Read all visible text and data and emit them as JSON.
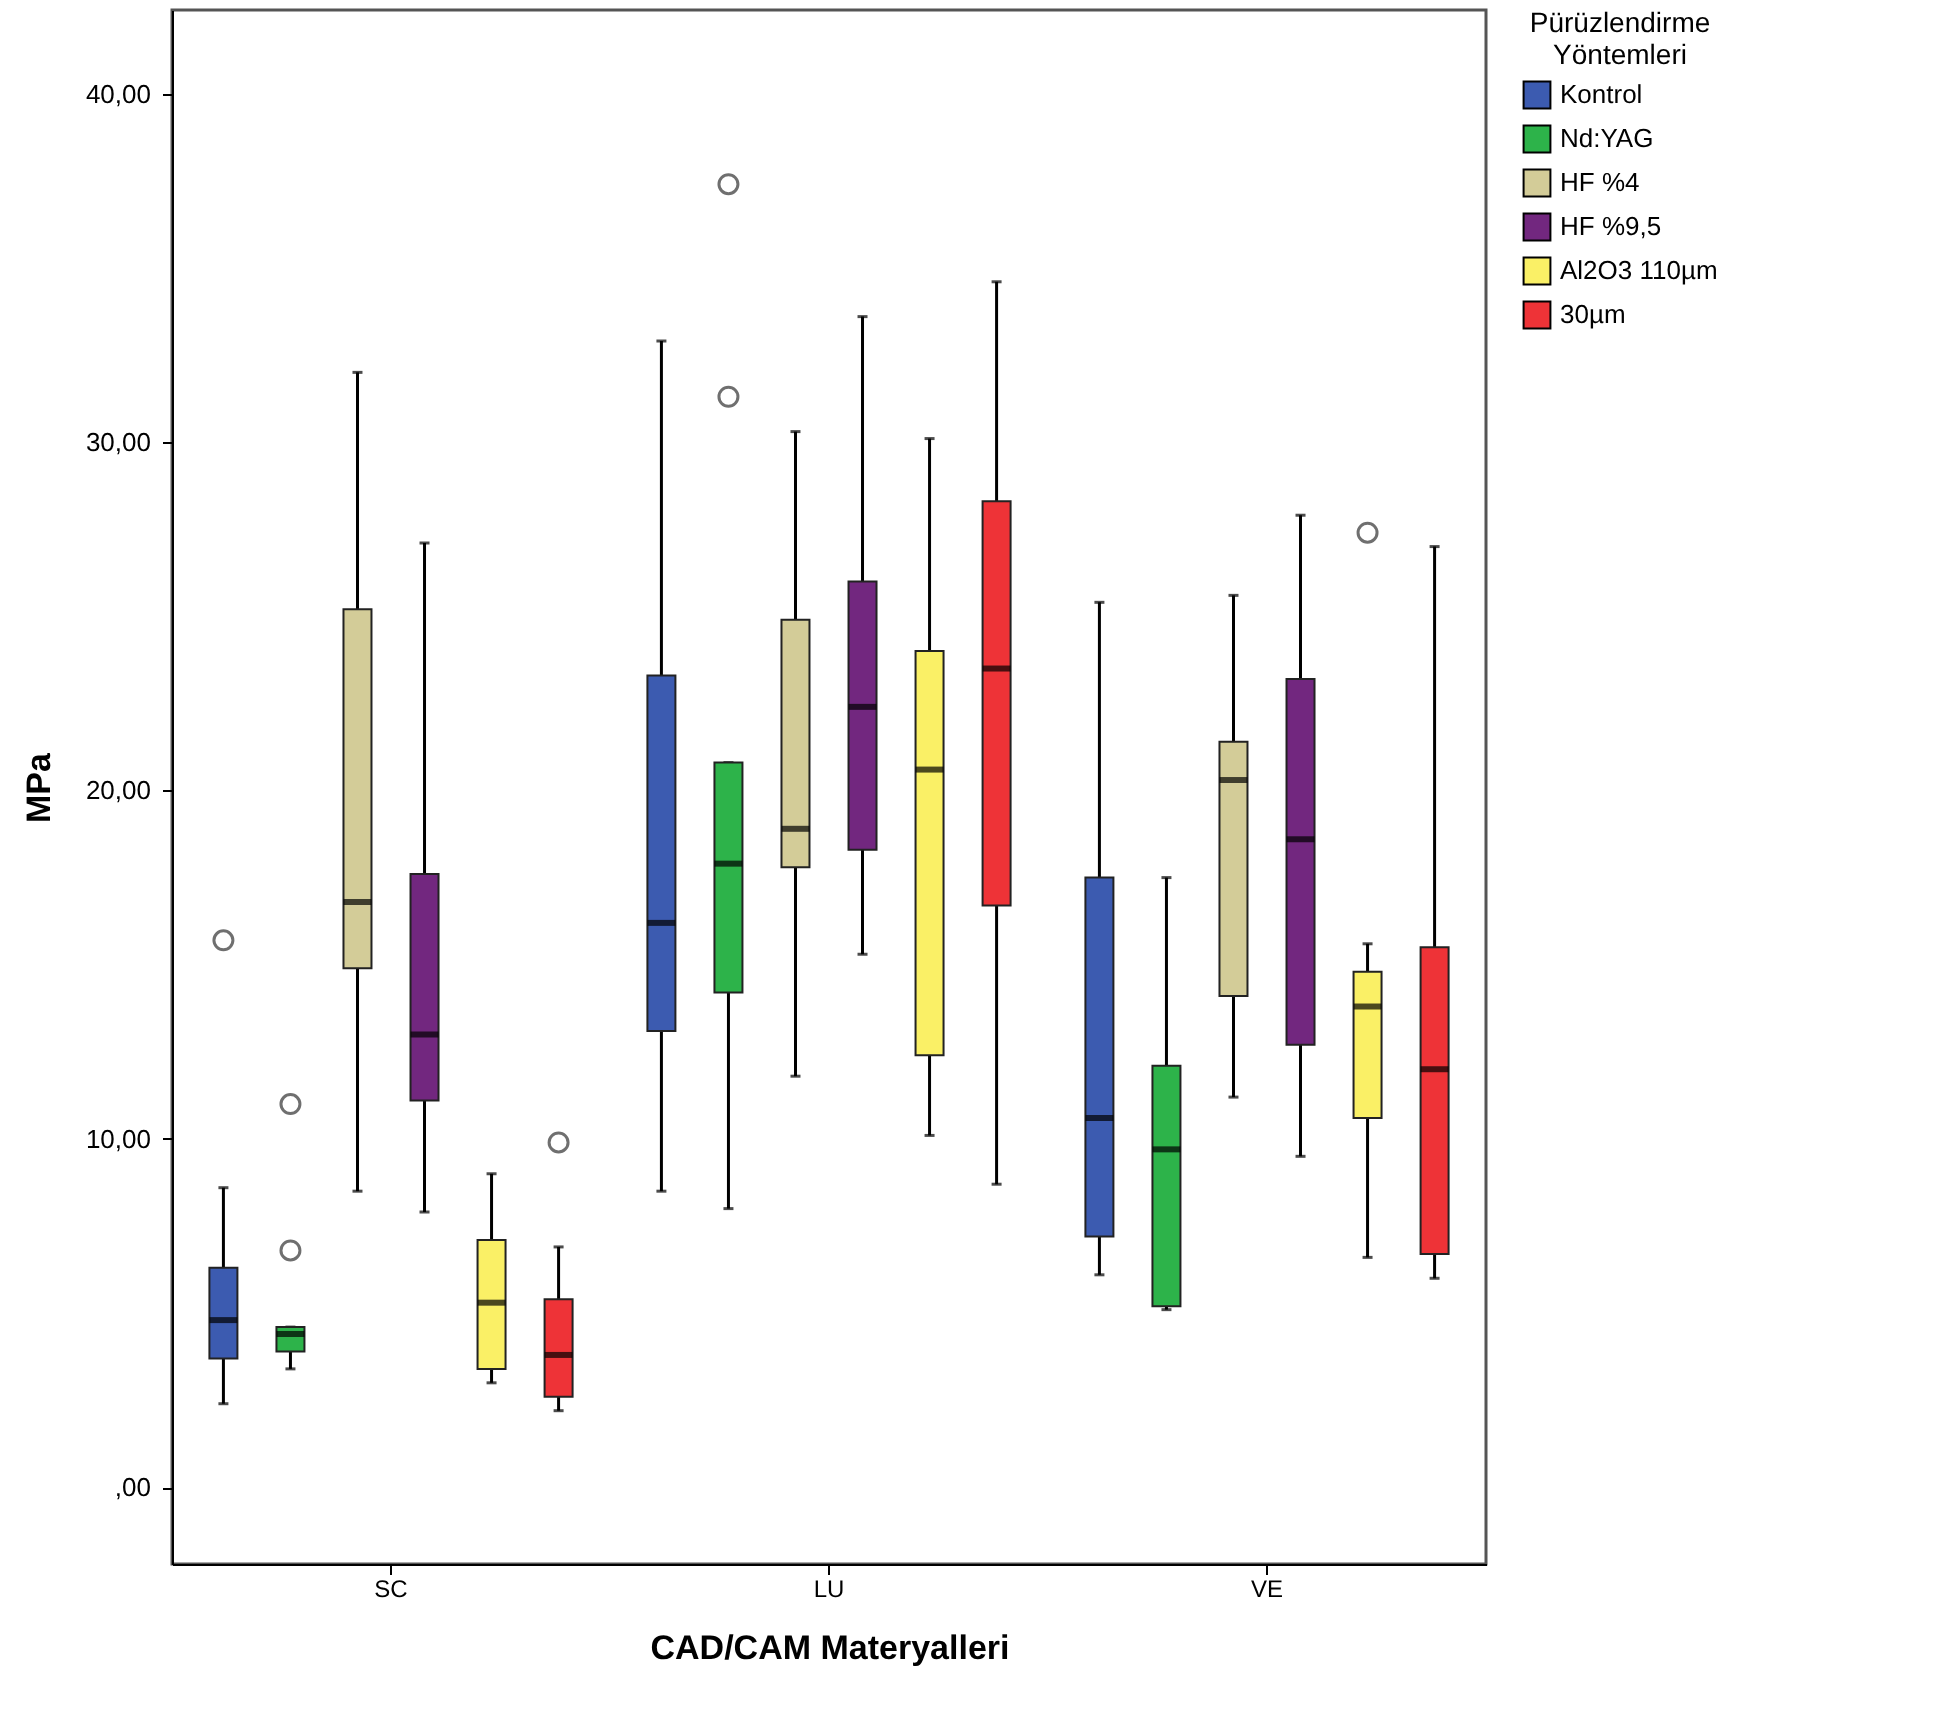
{
  "chart_data": {
    "type": "box",
    "xlabel": "CAD/CAM Materyalleri",
    "ylabel": "MPa",
    "legend_title": "Pürüzlendirme Yöntemleri",
    "categories": [
      "SC",
      "LU",
      "VE"
    ],
    "ylim": [
      -2.2,
      42.4
    ],
    "yticks": [
      {
        "value": 0,
        "label": ",00"
      },
      {
        "value": 10,
        "label": "10,00"
      },
      {
        "value": 20,
        "label": "20,00"
      },
      {
        "value": 30,
        "label": "30,00"
      },
      {
        "value": 40,
        "label": "40,00"
      }
    ],
    "grid": false,
    "legend": "top right",
    "series": [
      {
        "name": "Kontrol",
        "color": "#3c5bb0",
        "boxes": [
          {
            "low": 2.4,
            "q1": 3.7,
            "median": 4.8,
            "q3": 6.3,
            "high": 8.6,
            "outliers": [
              15.7
            ]
          },
          {
            "low": 8.5,
            "q1": 13.1,
            "median": 16.2,
            "q3": 23.3,
            "high": 32.9
          },
          {
            "low": 6.1,
            "q1": 7.2,
            "median": 10.6,
            "q3": 17.5,
            "high": 25.4
          }
        ]
      },
      {
        "name": "Nd:YAG",
        "color": "#2db34a",
        "boxes": [
          {
            "low": 3.4,
            "q1": 3.9,
            "median": 4.4,
            "q3": 4.6,
            "high": 4.6,
            "outliers": [
              6.8,
              11.0
            ]
          },
          {
            "low": 8.0,
            "q1": 14.2,
            "median": 17.9,
            "q3": 20.8,
            "high": 20.8,
            "outliers": [
              31.3,
              37.4
            ]
          },
          {
            "low": 5.1,
            "q1": 5.2,
            "median": 9.7,
            "q3": 12.1,
            "high": 17.5
          }
        ]
      },
      {
        "name": "HF %4",
        "color": "#d3cc98",
        "boxes": [
          {
            "low": 8.5,
            "q1": 14.9,
            "median": 16.8,
            "q3": 25.2,
            "high": 32.0
          },
          {
            "low": 11.8,
            "q1": 17.8,
            "median": 18.9,
            "q3": 24.9,
            "high": 30.3
          },
          {
            "low": 11.2,
            "q1": 14.1,
            "median": 20.3,
            "q3": 21.4,
            "high": 25.6
          }
        ]
      },
      {
        "name": "HF %9,5",
        "color": "#72277f",
        "boxes": [
          {
            "low": 7.9,
            "q1": 11.1,
            "median": 13.0,
            "q3": 17.6,
            "high": 27.1
          },
          {
            "low": 15.3,
            "q1": 18.3,
            "median": 22.4,
            "q3": 26.0,
            "high": 33.6
          },
          {
            "low": 9.5,
            "q1": 12.7,
            "median": 18.6,
            "q3": 23.2,
            "high": 27.9
          }
        ]
      },
      {
        "name": "Al2O3 110µm",
        "color": "#faf066",
        "boxes": [
          {
            "low": 3.0,
            "q1": 3.4,
            "median": 5.3,
            "q3": 7.1,
            "high": 9.0
          },
          {
            "low": 10.1,
            "q1": 12.4,
            "median": 20.6,
            "q3": 24.0,
            "high": 30.1
          },
          {
            "low": 6.6,
            "q1": 10.6,
            "median": 13.8,
            "q3": 14.8,
            "high": 15.6,
            "outliers": [
              27.4
            ]
          }
        ]
      },
      {
        "name": "30µm",
        "color": "#ee3337",
        "boxes": [
          {
            "low": 2.2,
            "q1": 2.6,
            "median": 3.8,
            "q3": 5.4,
            "high": 6.9,
            "outliers": [
              9.9
            ]
          },
          {
            "low": 8.7,
            "q1": 16.7,
            "median": 23.5,
            "q3": 28.3,
            "high": 34.6
          },
          {
            "low": 6.0,
            "q1": 6.7,
            "median": 12.0,
            "q3": 15.5,
            "high": 27.0
          }
        ]
      }
    ]
  }
}
